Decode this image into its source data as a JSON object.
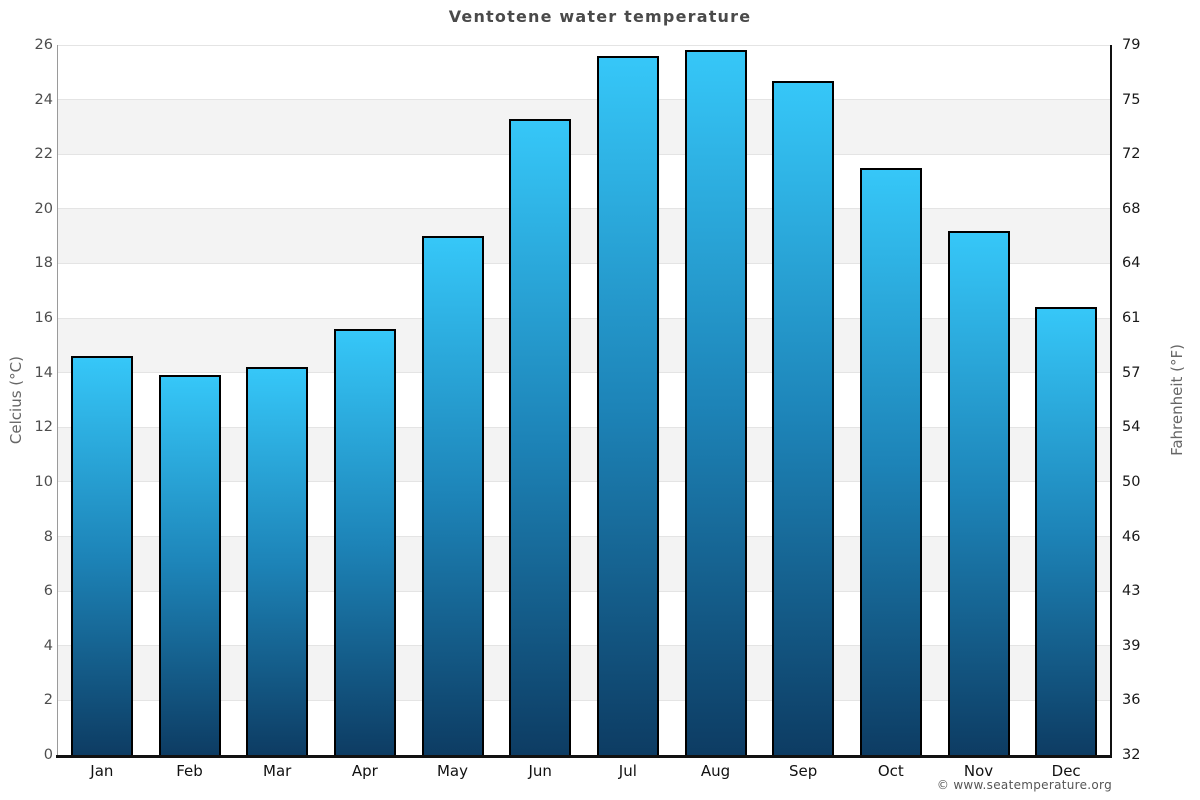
{
  "footer": {
    "copyright": "© www.seatemperature.org"
  },
  "chart_data": {
    "type": "bar",
    "title": "Ventotene water temperature",
    "categories": [
      "Jan",
      "Feb",
      "Mar",
      "Apr",
      "May",
      "Jun",
      "Jul",
      "Aug",
      "Sep",
      "Oct",
      "Nov",
      "Dec"
    ],
    "values": [
      14.6,
      13.9,
      14.2,
      15.6,
      19.0,
      23.3,
      25.6,
      25.8,
      24.7,
      21.5,
      19.2,
      16.4
    ],
    "xlabel": "",
    "ylabel_left": "Celcius (°C)",
    "ylabel_right": "Fahrenheit (°F)",
    "ylim": [
      0,
      26
    ],
    "yticks_celsius": [
      0,
      2,
      4,
      6,
      8,
      10,
      12,
      14,
      16,
      18,
      20,
      22,
      24,
      26
    ],
    "yticks_fahrenheit": [
      32,
      36,
      39,
      43,
      46,
      50,
      54,
      57,
      61,
      64,
      68,
      72,
      75,
      79
    ],
    "grid": true,
    "legend": "none",
    "colors": {
      "bar_top": "#36c7f8",
      "bar_mid": "#1d84b8",
      "bar_bottom": "#0d3c63",
      "bar_border": "#000000",
      "band": "#f3f3f3",
      "gridline": "#e4e4e4",
      "title_text": "#4a4a4a",
      "axis_label_text": "#666666"
    }
  }
}
